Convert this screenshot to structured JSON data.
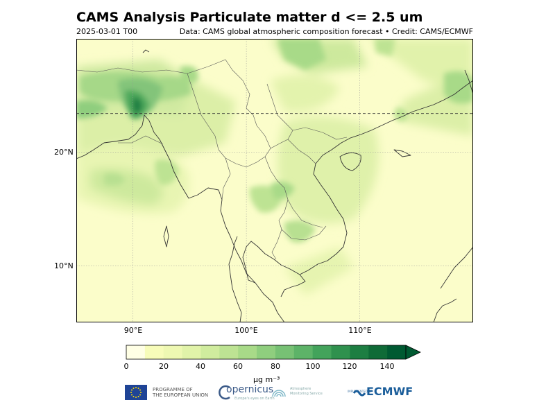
{
  "title": "CAMS Analysis Particulate matter d <= 2.5 um",
  "date": "2025-03-01 T00",
  "credit": "Data: CAMS global atmospheric composition forecast • Credit: CAMS/ECMWF",
  "map": {
    "extent": {
      "lon_min": 85,
      "lon_max": 120,
      "lat_min": 5,
      "lat_max": 30
    },
    "lat_ticks": [
      {
        "lat": 20,
        "label": "20°N"
      },
      {
        "lat": 10,
        "label": "10°N"
      }
    ],
    "lon_ticks": [
      {
        "lon": 90,
        "label": "90°E"
      },
      {
        "lon": 100,
        "label": "100°E"
      },
      {
        "lon": 110,
        "label": "110°E"
      }
    ],
    "tropic_lat": 23.44
  },
  "colorbar": {
    "ticks": [
      "0",
      "20",
      "40",
      "60",
      "80",
      "100",
      "120",
      "140"
    ],
    "colors": [
      "#ffffe5",
      "#f7fcb9",
      "#eef8b2",
      "#e1f3a9",
      "#d0ec9e",
      "#bde393",
      "#a8da88",
      "#8fce7e",
      "#77c174",
      "#5db368",
      "#43a35b",
      "#2f914e",
      "#1d7e42",
      "#0f6b37",
      "#005a32"
    ],
    "units": "μg m⁻³",
    "extend": "max"
  },
  "logos": {
    "eu": "PROGRAMME OF\nTHE EUROPEAN UNION",
    "copernicus": "opernicus",
    "copernicus_sub": "Europe's eyes on Earth",
    "cams": "Atmosphere\nMonitoring Service",
    "impl": "IMPLEMENTED BY",
    "ecmwf": "ECMWF"
  }
}
